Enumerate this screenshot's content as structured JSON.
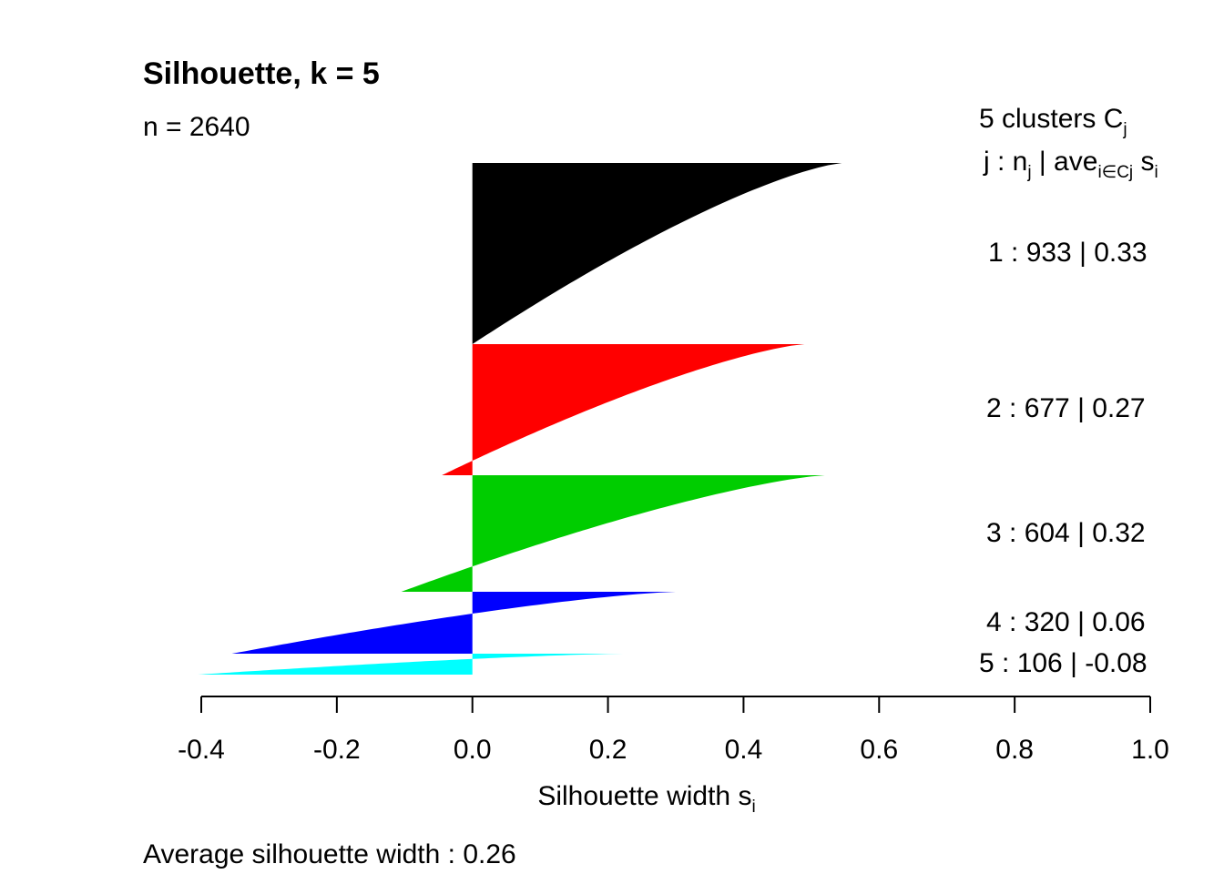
{
  "chart_data": {
    "type": "silhouette",
    "title": "Silhouette, k = 5",
    "n_label": "n = 2640",
    "legend_header": {
      "line1_main": "5  clusters  C",
      "line1_sub": "j",
      "line2_parts": [
        {
          "text": "j :  n",
          "sub": "j"
        },
        {
          "text": " | ave",
          "sub": "i∈Cj"
        },
        {
          "text": "  s",
          "sub": "i"
        }
      ]
    },
    "clusters": [
      {
        "id": 1,
        "n": 933,
        "avg_width": 0.33,
        "label": "1 :   933  |  0.33",
        "color": "#000000",
        "min": 0.0,
        "max": 0.545
      },
      {
        "id": 2,
        "n": 677,
        "avg_width": 0.27,
        "label": "2 :   677  |  0.27",
        "color": "#ff0000",
        "min": -0.045,
        "max": 0.49
      },
      {
        "id": 3,
        "n": 604,
        "avg_width": 0.32,
        "label": "3 :   604  |  0.32",
        "color": "#00cd00",
        "min": -0.105,
        "max": 0.52
      },
      {
        "id": 4,
        "n": 320,
        "avg_width": 0.06,
        "label": "4 :   320  |  0.06",
        "color": "#0000ff",
        "min": -0.355,
        "max": 0.3
      },
      {
        "id": 5,
        "n": 106,
        "avg_width": -0.08,
        "label": "5 :   106  |  -0.08",
        "color": "#00ffff",
        "min": -0.405,
        "max": 0.223
      }
    ],
    "xlim": [
      -0.4,
      1.0
    ],
    "x_ticks": [
      -0.4,
      -0.2,
      0.0,
      0.2,
      0.4,
      0.6,
      0.8,
      1.0
    ],
    "x_tick_labels": [
      "-0.4",
      "-0.2",
      "0.0",
      "0.2",
      "0.4",
      "0.6",
      "0.8",
      "1.0"
    ],
    "xlabel_main": "Silhouette width s",
    "xlabel_sub": "i",
    "footer": "Average silhouette width :  0.26"
  }
}
